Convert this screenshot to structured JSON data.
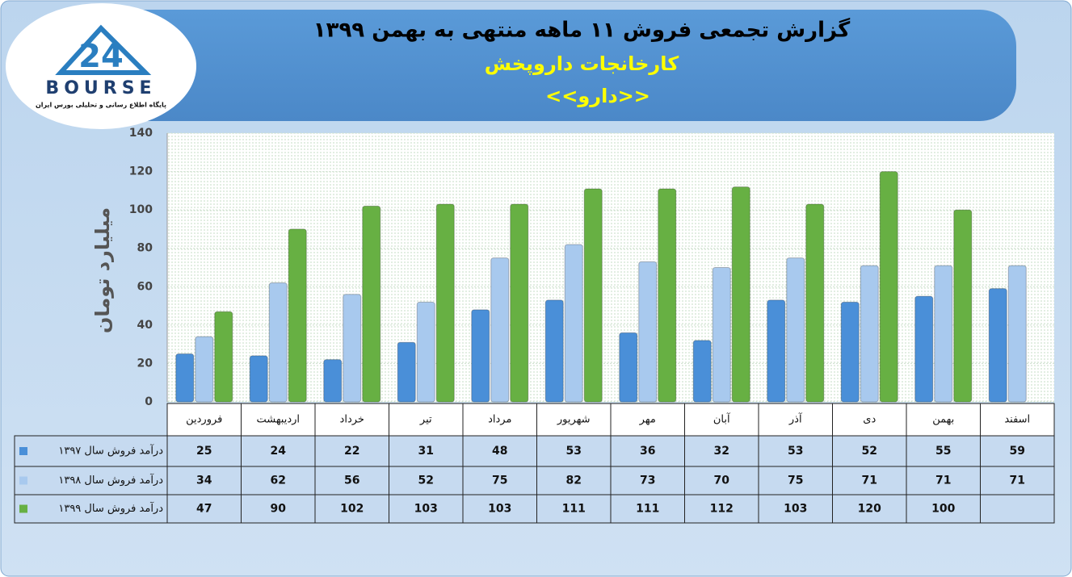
{
  "logo": {
    "number": "24",
    "name": "BOURSE",
    "tagline": "پایگاه اطلاع رسانی و تحلیلی بورس ایران"
  },
  "chart_data": {
    "type": "bar",
    "title": "گزارش تجمعی فروش ۱۱ ماهه منتهی به بهمن ۱۳۹۹",
    "subtitle": "کارخانجات داروپخش",
    "annotation": "<<دارو>>",
    "y_label": "میلیارد تومان",
    "categories": [
      "فروردین",
      "اردیبهشت",
      "خرداد",
      "تیر",
      "مرداد",
      "شهریور",
      "مهر",
      "آبان",
      "آذر",
      "دی",
      "بهمن",
      "اسفند"
    ],
    "series": [
      {
        "name": "درآمد فروش سال ۱۳۹۷",
        "color": "#4a8fd8",
        "values": [
          25,
          24,
          22,
          31,
          48,
          53,
          36,
          32,
          53,
          52,
          55,
          59
        ]
      },
      {
        "name": "درآمد فروش سال ۱۳۹۸",
        "color": "#a8c9ee",
        "values": [
          34,
          62,
          56,
          52,
          75,
          82,
          73,
          70,
          75,
          71,
          71,
          71
        ]
      },
      {
        "name": "درآمد فروش سال ۱۳۹۹",
        "color": "#67b043",
        "values": [
          47,
          90,
          102,
          103,
          103,
          111,
          111,
          112,
          103,
          120,
          100,
          null
        ]
      }
    ],
    "ylim": [
      0,
      140
    ],
    "yticks": [
      0,
      20,
      40,
      60,
      80,
      100,
      120,
      140
    ],
    "grid": true
  }
}
